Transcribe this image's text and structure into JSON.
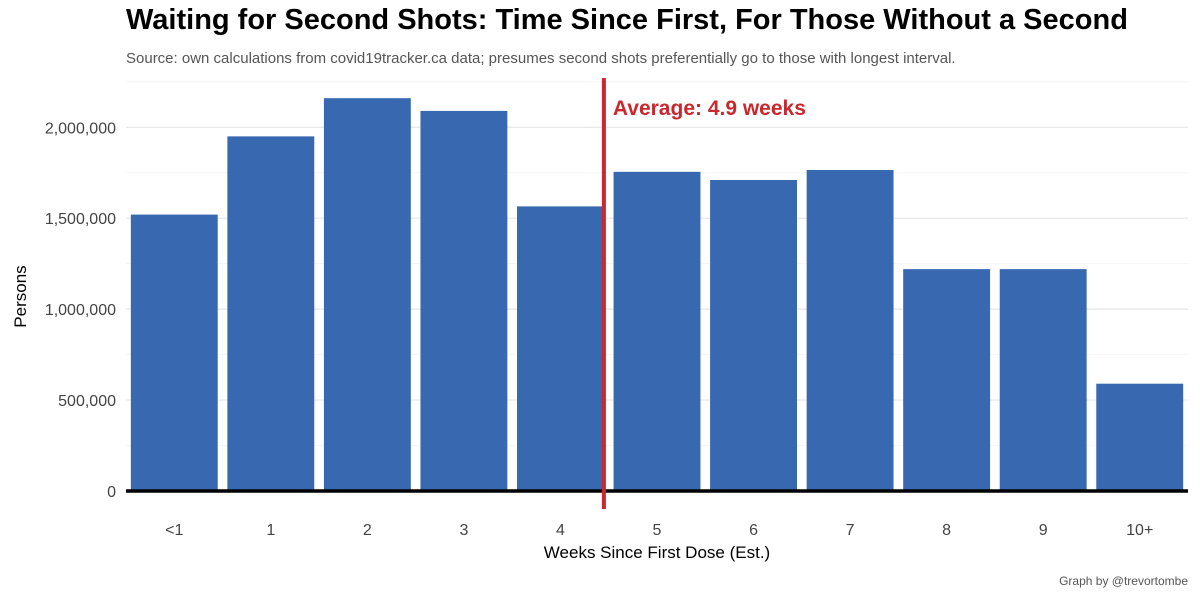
{
  "chart_data": {
    "type": "bar",
    "title": "Waiting for Second Shots: Time Since First, For Those Without a Second",
    "subtitle": "Source: own calculations from covid19tracker.ca data; presumes second shots preferentially go to those with longest interval.",
    "caption": "Graph by @trevortombe",
    "xlabel": "Weeks Since First Dose (Est.)",
    "ylabel": "Persons",
    "categories": [
      "<1",
      "1",
      "2",
      "3",
      "4",
      "5",
      "6",
      "7",
      "8",
      "9",
      "10+"
    ],
    "values": [
      1520000,
      1950000,
      2160000,
      2090000,
      1565000,
      1755000,
      1710000,
      1765000,
      1220000,
      1220000,
      590000
    ],
    "ylim": [
      0,
      2300000
    ],
    "yticks": [
      0,
      500000,
      1000000,
      1500000,
      2000000
    ],
    "ytick_labels": [
      "0",
      "500,000",
      "1,000,000",
      "1,500,000",
      "2,000,000"
    ],
    "average_line": {
      "x": 4.9,
      "label": "Average: 4.9 weeks"
    },
    "grid": true,
    "colors": {
      "bar": "#3868b0",
      "average": "#c8282e",
      "grid": "#e6e6e6",
      "baseline": "#000000"
    }
  }
}
